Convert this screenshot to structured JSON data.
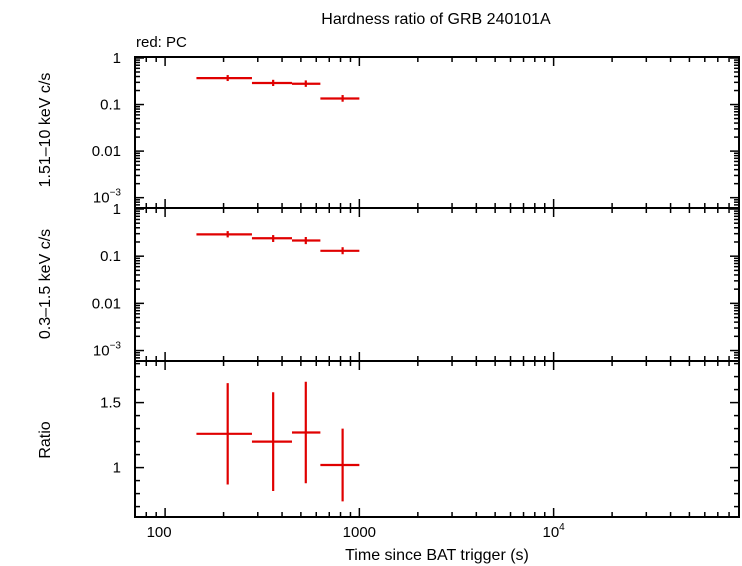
{
  "chart_data": {
    "type": "scatter",
    "title": "Hardness ratio of GRB 240101A",
    "annotation": "red: PC",
    "xlabel": "Time since BAT trigger (s)",
    "x_scale": "log",
    "xlim": [
      70,
      90000
    ],
    "x_ticks": [
      {
        "value": 100,
        "label": "100"
      },
      {
        "value": 1000,
        "label": "1000"
      },
      {
        "value": 10000,
        "label": "10",
        "exp": "4"
      }
    ],
    "panels": [
      {
        "id": "hard",
        "ylabel": "1.51–10 keV c/s",
        "y_scale": "log",
        "ylim": [
          0.0006,
          1.05
        ],
        "y_ticks": [
          {
            "value": 1,
            "label": "1"
          },
          {
            "value": 0.1,
            "label": "0.1"
          },
          {
            "value": 0.01,
            "label": "0.01"
          },
          {
            "value": 0.001,
            "label": "10",
            "exp": "−3"
          }
        ],
        "series": [
          {
            "color": "#e00000",
            "points": [
              {
                "x": 210,
                "xlo": 145,
                "xhi": 280,
                "y": 0.37,
                "ylo": 0.32,
                "yhi": 0.43
              },
              {
                "x": 360,
                "xlo": 280,
                "xhi": 450,
                "y": 0.29,
                "ylo": 0.25,
                "yhi": 0.34
              },
              {
                "x": 530,
                "xlo": 450,
                "xhi": 630,
                "y": 0.28,
                "ylo": 0.24,
                "yhi": 0.33
              },
              {
                "x": 820,
                "xlo": 630,
                "xhi": 1000,
                "y": 0.135,
                "ylo": 0.115,
                "yhi": 0.16
              }
            ]
          }
        ]
      },
      {
        "id": "soft",
        "ylabel": "0.3–1.5 keV c/s",
        "y_scale": "log",
        "ylim": [
          0.0006,
          1.05
        ],
        "y_ticks": [
          {
            "value": 1,
            "label": "1"
          },
          {
            "value": 0.1,
            "label": "0.1"
          },
          {
            "value": 0.01,
            "label": "0.01"
          },
          {
            "value": 0.001,
            "label": "10",
            "exp": "−3"
          }
        ],
        "series": [
          {
            "color": "#e00000",
            "points": [
              {
                "x": 210,
                "xlo": 145,
                "xhi": 280,
                "y": 0.29,
                "ylo": 0.25,
                "yhi": 0.34
              },
              {
                "x": 360,
                "xlo": 280,
                "xhi": 450,
                "y": 0.24,
                "ylo": 0.2,
                "yhi": 0.28
              },
              {
                "x": 530,
                "xlo": 450,
                "xhi": 630,
                "y": 0.215,
                "ylo": 0.18,
                "yhi": 0.255
              },
              {
                "x": 820,
                "xlo": 630,
                "xhi": 1000,
                "y": 0.13,
                "ylo": 0.11,
                "yhi": 0.155
              }
            ]
          }
        ]
      },
      {
        "id": "ratio",
        "ylabel": "Ratio",
        "y_scale": "linear",
        "ylim": [
          0.62,
          1.82
        ],
        "y_ticks": [
          {
            "value": 1.5,
            "label": "1.5"
          },
          {
            "value": 1,
            "label": "1"
          }
        ],
        "series": [
          {
            "color": "#e00000",
            "points": [
              {
                "x": 210,
                "xlo": 145,
                "xhi": 280,
                "y": 1.26,
                "ylo": 0.87,
                "yhi": 1.65
              },
              {
                "x": 360,
                "xlo": 280,
                "xhi": 450,
                "y": 1.2,
                "ylo": 0.82,
                "yhi": 1.58
              },
              {
                "x": 530,
                "xlo": 450,
                "xhi": 630,
                "y": 1.27,
                "ylo": 0.88,
                "yhi": 1.66
              },
              {
                "x": 820,
                "xlo": 630,
                "xhi": 1000,
                "y": 1.02,
                "ylo": 0.74,
                "yhi": 1.3
              }
            ]
          }
        ]
      }
    ]
  }
}
